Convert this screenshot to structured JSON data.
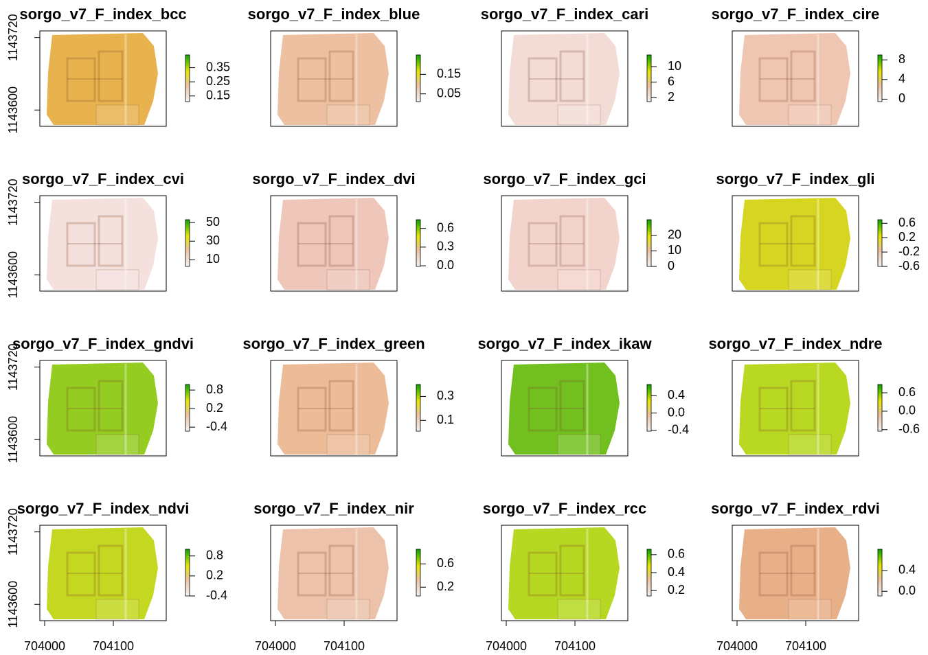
{
  "chart_data": [
    {
      "type": "raster",
      "title": "sorgo_v7_F_index_bcc",
      "color": "#e8b24e",
      "zlim": [
        0.11,
        0.44
      ],
      "zticks": [
        0.15,
        0.25,
        0.35
      ],
      "xlim": [
        703993,
        704177
      ],
      "ylim": [
        1143573,
        1143731
      ],
      "yticks": [
        1143600,
        1143720
      ]
    },
    {
      "type": "raster",
      "title": "sorgo_v7_F_index_blue",
      "color": "#ecc0a0",
      "zlim": [
        0.01,
        0.25
      ],
      "zticks": [
        0.05,
        0.15
      ],
      "xlim": [
        703993,
        704177
      ],
      "ylim": [
        1143573,
        1143731
      ]
    },
    {
      "type": "raster",
      "title": "sorgo_v7_F_index_cari",
      "color": "#f3dcd6",
      "zlim": [
        1,
        13
      ],
      "zticks": [
        2,
        6,
        10
      ],
      "xlim": [
        703993,
        704177
      ],
      "ylim": [
        1143573,
        1143731
      ]
    },
    {
      "type": "raster",
      "title": "sorgo_v7_F_index_cire",
      "color": "#efc6b2",
      "zlim": [
        -0.5,
        9
      ],
      "zticks": [
        0,
        4,
        8
      ],
      "xlim": [
        703993,
        704177
      ],
      "ylim": [
        1143573,
        1143731
      ]
    },
    {
      "type": "raster",
      "title": "sorgo_v7_F_index_cvi",
      "color": "#f4e0dc",
      "zlim": [
        3,
        53
      ],
      "zticks": [
        10,
        30,
        50
      ],
      "xlim": [
        703993,
        704177
      ],
      "ylim": [
        1143573,
        1143731
      ],
      "yticks": [
        1143600,
        1143720
      ]
    },
    {
      "type": "raster",
      "title": "sorgo_v7_F_index_dvi",
      "color": "#eec6ba",
      "zlim": [
        -0.01,
        0.74
      ],
      "zticks": [
        {
          "value": 0,
          "label": "0.0"
        },
        0.3,
        0.6
      ],
      "xlim": [
        703993,
        704177
      ],
      "ylim": [
        1143573,
        1143731
      ]
    },
    {
      "type": "raster",
      "title": "sorgo_v7_F_index_gci",
      "color": "#f2d4cc",
      "zlim": [
        0,
        30
      ],
      "zticks": [
        0,
        10,
        20
      ],
      "xlim": [
        703993,
        704177
      ],
      "ylim": [
        1143573,
        1143731
      ]
    },
    {
      "type": "raster",
      "title": "sorgo_v7_F_index_gli",
      "color": "#d6d622",
      "zlim": [
        -0.6,
        0.7
      ],
      "zticks": [
        -0.6,
        -0.2,
        0.2,
        0.6
      ],
      "xlim": [
        703993,
        704177
      ],
      "ylim": [
        1143573,
        1143731
      ]
    },
    {
      "type": "raster",
      "title": "sorgo_v7_F_index_gndvi",
      "color": "#94cc22",
      "zlim": [
        -0.53,
        0.98
      ],
      "zticks": [
        -0.4,
        0.2,
        0.8
      ],
      "xlim": [
        703993,
        704177
      ],
      "ylim": [
        1143573,
        1143731
      ],
      "yticks": [
        1143600,
        1143720
      ]
    },
    {
      "type": "raster",
      "title": "sorgo_v7_F_index_green",
      "color": "#ecbc98",
      "zlim": [
        0.01,
        0.4
      ],
      "zticks": [
        0.1,
        0.3
      ],
      "xlim": [
        703993,
        704177
      ],
      "ylim": [
        1143573,
        1143731
      ]
    },
    {
      "type": "raster",
      "title": "sorgo_v7_F_index_ikaw",
      "color": "#72c020",
      "zlim": [
        -0.42,
        0.66
      ],
      "zticks": [
        -0.4,
        {
          "value": 0,
          "label": "0.0"
        },
        0.4
      ],
      "xlim": [
        703993,
        704177
      ],
      "ylim": [
        1143573,
        1143731
      ]
    },
    {
      "type": "raster",
      "title": "sorgo_v7_F_index_ndre",
      "color": "#b8d822",
      "zlim": [
        -0.65,
        0.87
      ],
      "zticks": [
        -0.6,
        {
          "value": 0,
          "label": "0.0"
        },
        0.6
      ],
      "xlim": [
        703993,
        704177
      ],
      "ylim": [
        1143573,
        1143731
      ]
    },
    {
      "type": "raster",
      "title": "sorgo_v7_F_index_ndvi",
      "color": "#c4d822",
      "zlim": [
        -0.4,
        1.0
      ],
      "zticks": [
        -0.4,
        0.2,
        0.8
      ],
      "xlim": [
        703993,
        704177
      ],
      "ylim": [
        1143573,
        1143731
      ],
      "yticks": [
        1143600,
        1143720
      ],
      "xticks": [
        704000,
        704100
      ]
    },
    {
      "type": "raster",
      "title": "sorgo_v7_F_index_nir",
      "color": "#ecc2aa",
      "zlim": [
        0.05,
        0.85
      ],
      "zticks": [
        0.2,
        0.6
      ],
      "xlim": [
        703993,
        704177
      ],
      "ylim": [
        1143573,
        1143731
      ],
      "xticks": [
        704000,
        704100
      ]
    },
    {
      "type": "raster",
      "title": "sorgo_v7_F_index_rcc",
      "color": "#b6d822",
      "zlim": [
        0.14,
        0.66
      ],
      "zticks": [
        0.2,
        0.4,
        0.6
      ],
      "xlim": [
        703993,
        704177
      ],
      "ylim": [
        1143573,
        1143731
      ],
      "xticks": [
        704000,
        704100
      ]
    },
    {
      "type": "raster",
      "title": "sorgo_v7_F_index_rdvi",
      "color": "#e8b088",
      "zlim": [
        -0.09,
        0.81
      ],
      "zticks": [
        {
          "value": 0,
          "label": "0.0"
        },
        0.4
      ],
      "xlim": [
        703993,
        704177
      ],
      "ylim": [
        1143573,
        1143731
      ],
      "xticks": [
        704000,
        704100
      ]
    }
  ]
}
